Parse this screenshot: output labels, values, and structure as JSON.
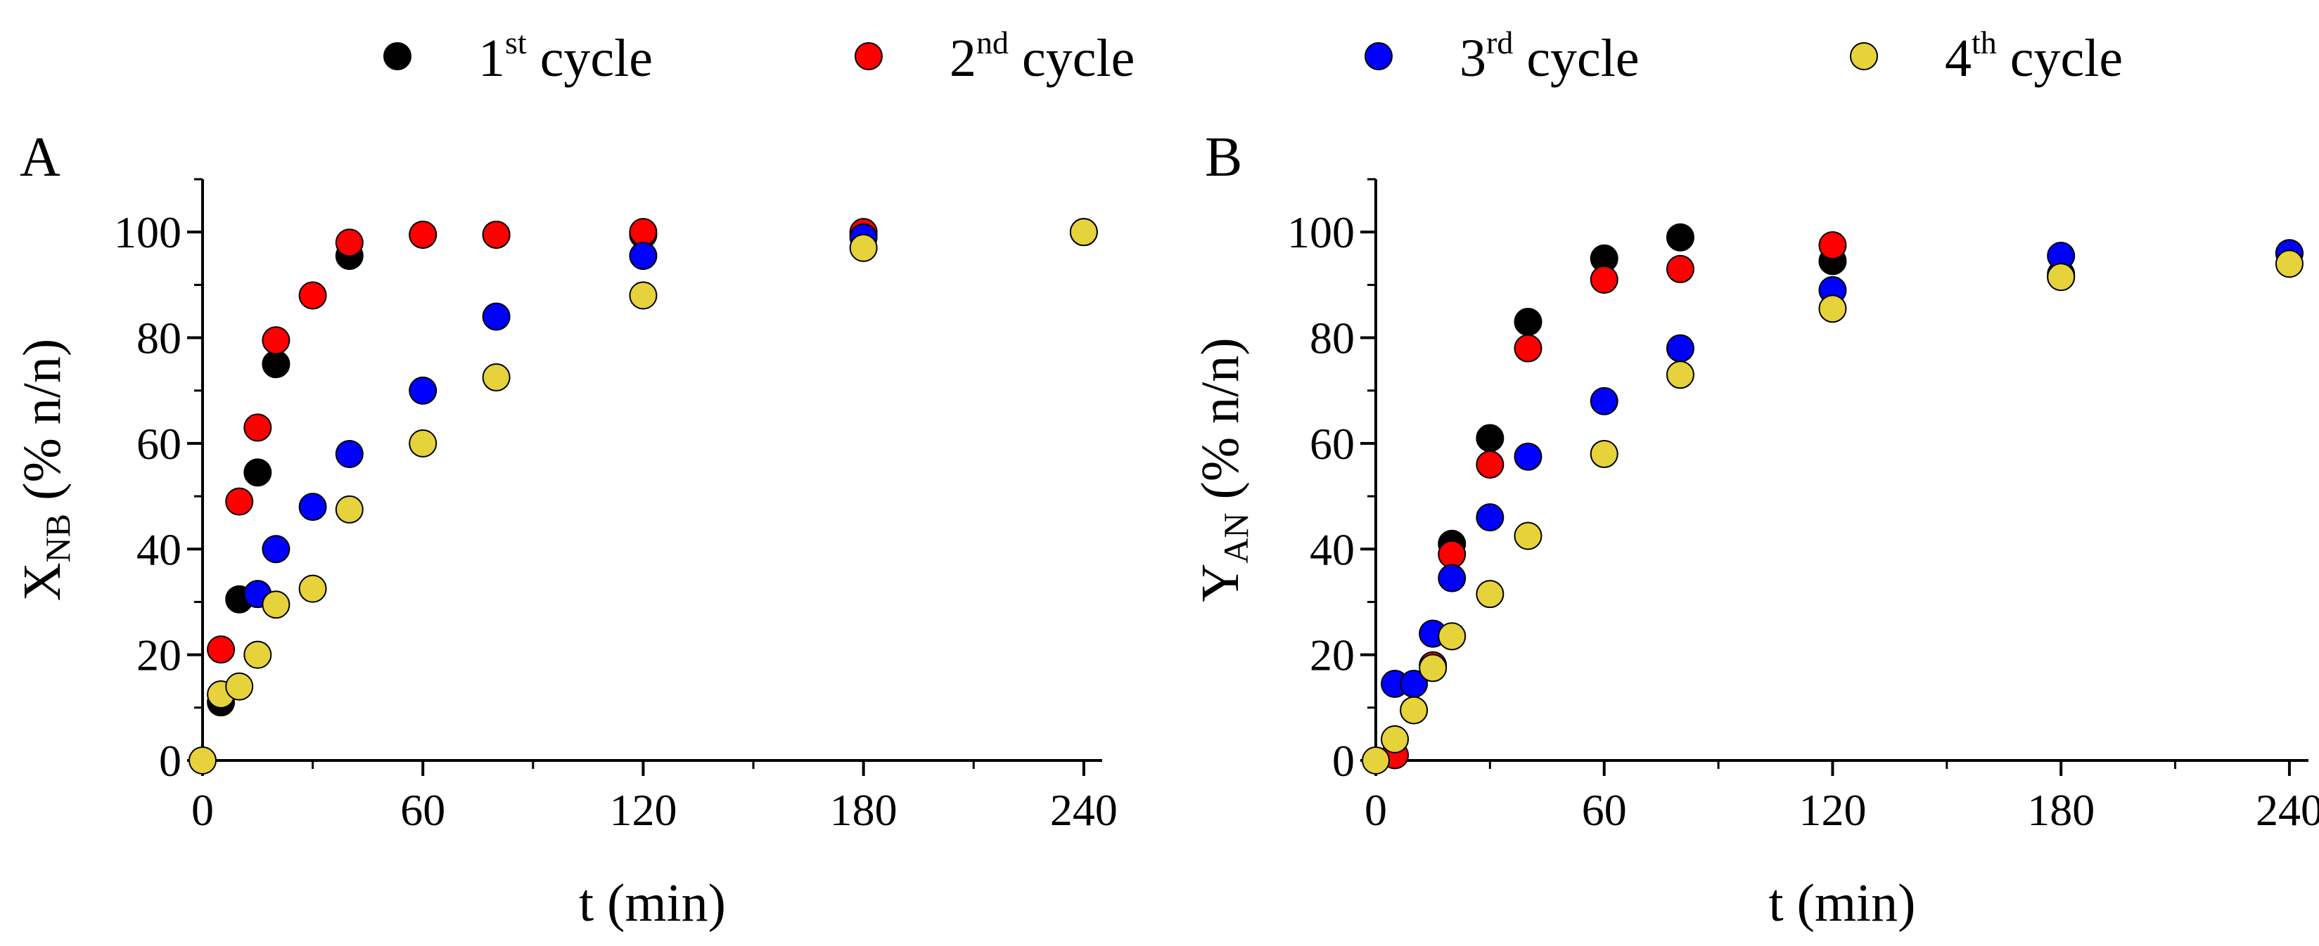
{
  "legend": [
    {
      "main": "1",
      "sup": "st",
      "rest": " cycle",
      "color": "#000000"
    },
    {
      "main": "2",
      "sup": "nd",
      "rest": " cycle",
      "color": "#ff0000"
    },
    {
      "main": "3",
      "sup": "rd",
      "rest": " cycle",
      "color": "#0000ff"
    },
    {
      "main": "4",
      "sup": "th",
      "rest": " cycle",
      "color": "#e6d23a"
    }
  ],
  "chart_data": [
    {
      "type": "scatter",
      "panel_label": "A",
      "xlabel": "t (min)",
      "ylabel": {
        "main": "X",
        "sub": "NB",
        "rest": " (% n/n)"
      },
      "xlim": [
        0,
        245
      ],
      "ylim": [
        0,
        110
      ],
      "xticks": [
        0,
        60,
        120,
        180,
        240
      ],
      "yticks": [
        0,
        20,
        40,
        60,
        80,
        100
      ],
      "series": [
        {
          "name": "1st cycle",
          "color": "#000000",
          "x": [
            5,
            10,
            15,
            20,
            40,
            60,
            80,
            120,
            180,
            240
          ],
          "y": [
            11,
            30.5,
            54.5,
            75,
            95.5,
            99.5,
            99.5,
            99.5,
            99.5,
            100
          ]
        },
        {
          "name": "2nd cycle",
          "color": "#ff0000",
          "x": [
            5,
            10,
            15,
            20,
            30,
            40,
            60,
            80,
            120,
            180
          ],
          "y": [
            21,
            49,
            63,
            79.5,
            88,
            98,
            99.5,
            99.5,
            100,
            100
          ]
        },
        {
          "name": "3rd cycle",
          "color": "#0000ff",
          "x": [
            15,
            20,
            30,
            40,
            60,
            80,
            120,
            180
          ],
          "y": [
            31.5,
            40,
            48,
            58,
            70,
            84,
            95.5,
            99
          ]
        },
        {
          "name": "4th cycle",
          "color": "#e6d23a",
          "x": [
            0,
            5,
            10,
            15,
            20,
            30,
            40,
            60,
            80,
            120,
            180,
            240
          ],
          "y": [
            0,
            12.5,
            14,
            20,
            29.5,
            32.5,
            47.5,
            60,
            72.5,
            88,
            97,
            100
          ]
        }
      ]
    },
    {
      "type": "scatter",
      "panel_label": "B",
      "xlabel": "t (min)",
      "ylabel": {
        "main": "Y",
        "sub": "AN",
        "rest": " (% n/n)"
      },
      "xlim": [
        0,
        245
      ],
      "ylim": [
        0,
        110
      ],
      "xticks": [
        0,
        60,
        120,
        180,
        240
      ],
      "yticks": [
        0,
        20,
        40,
        60,
        80,
        100
      ],
      "series": [
        {
          "name": "1st cycle",
          "color": "#000000",
          "x": [
            20,
            30,
            40,
            60,
            80,
            120,
            180,
            240
          ],
          "y": [
            41,
            61,
            83,
            95,
            99,
            94.5,
            92,
            96
          ]
        },
        {
          "name": "2nd cycle",
          "color": "#ff0000",
          "x": [
            5,
            15,
            20,
            30,
            40,
            60,
            80,
            120,
            180
          ],
          "y": [
            1,
            18,
            39,
            56,
            78,
            91,
            93,
            97.5,
            91.5
          ]
        },
        {
          "name": "3rd cycle",
          "color": "#0000ff",
          "x": [
            5,
            10,
            15,
            20,
            30,
            40,
            60,
            80,
            120,
            180,
            240
          ],
          "y": [
            14.5,
            14.5,
            24,
            34.5,
            46,
            57.5,
            68,
            78,
            89,
            95.5,
            96
          ]
        },
        {
          "name": "4th cycle",
          "color": "#e6d23a",
          "x": [
            0,
            5,
            10,
            15,
            20,
            30,
            40,
            60,
            80,
            120,
            180,
            240
          ],
          "y": [
            0,
            4,
            9.5,
            17.5,
            23.5,
            31.5,
            42.5,
            58,
            73,
            85.5,
            91.5,
            94
          ]
        }
      ]
    }
  ]
}
